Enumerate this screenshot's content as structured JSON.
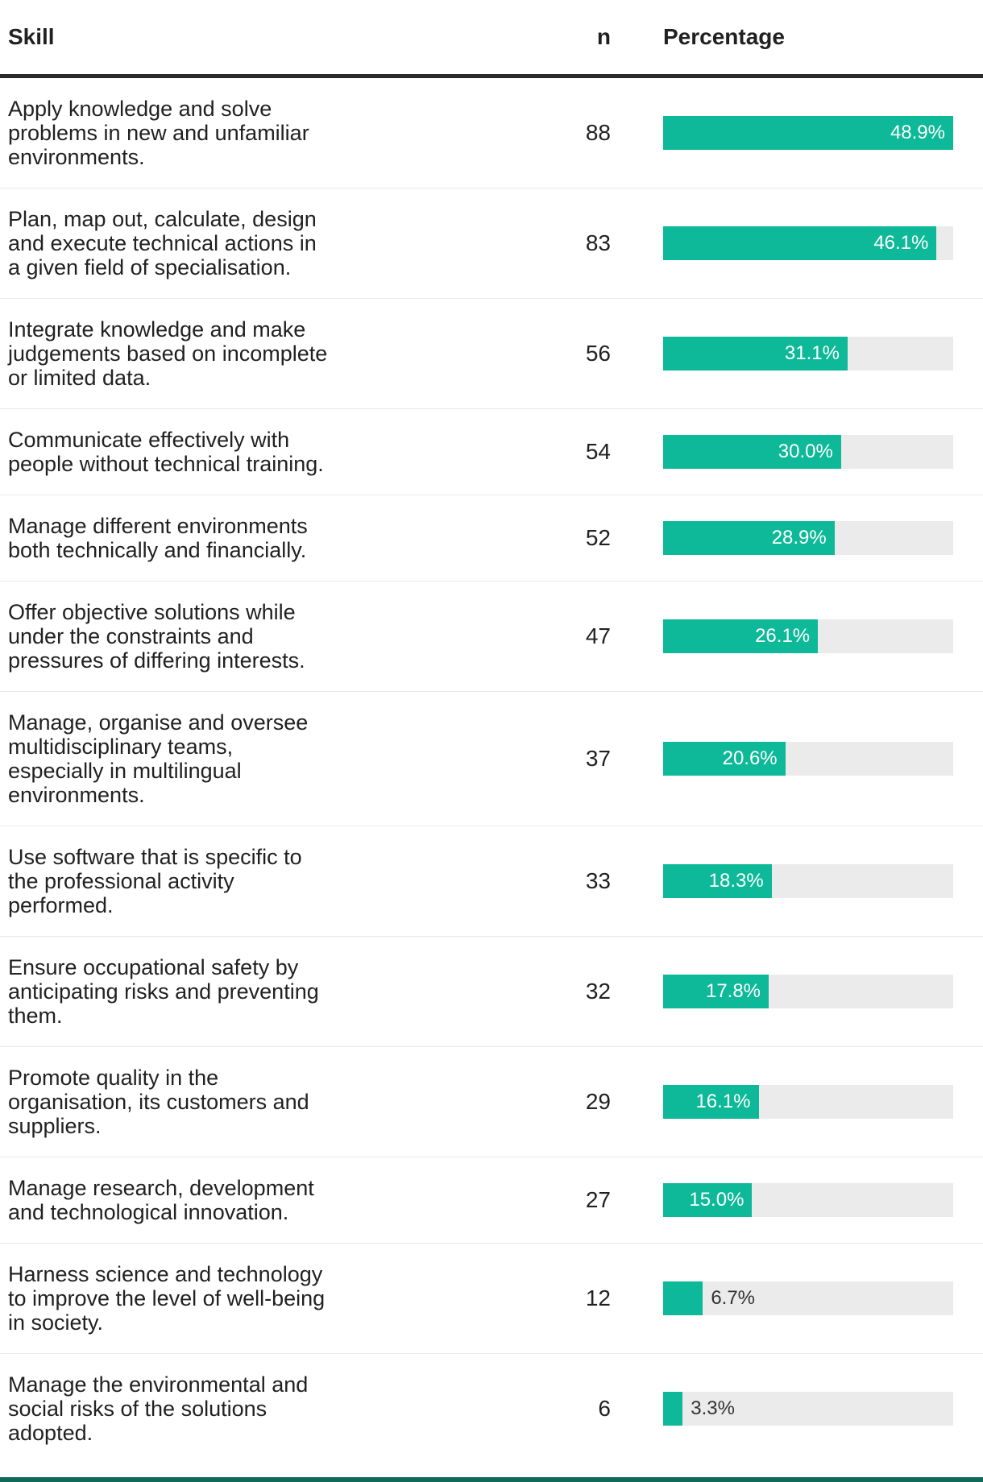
{
  "header": {
    "skill": "Skill",
    "n": "n",
    "percentage": "Percentage"
  },
  "colors": {
    "bar_fill": "#0db998",
    "bar_track": "#ebebeb",
    "header_rule": "#2b2b2b",
    "row_divider": "#e8e8e8",
    "bottom_rule": "#11695a",
    "text": "#212121",
    "bar_label_inside": "#ffffff",
    "bar_label_outside": "#333333"
  },
  "chart_data": {
    "type": "bar",
    "orientation": "horizontal",
    "title": "",
    "xlabel": "",
    "ylabel": "",
    "legend": "none",
    "grid": false,
    "xlim": [
      0,
      48.9
    ],
    "categories": [
      "Apply knowledge and solve\nproblems in new and unfamiliar\nenvironments.",
      "Plan, map out, calculate, design\nand execute technical actions in\na given field of specialisation.",
      "Integrate knowledge and make\njudgements based on incomplete\nor limited data.",
      "Communicate effectively with\npeople without technical training.",
      "Manage different environments\nboth technically and financially.",
      "Offer objective solutions while\nunder the constraints and\npressures of differing interests.",
      "Manage, organise and oversee\nmultidisciplinary teams,\nespecially in multilingual\nenvironments.",
      "Use software that is specific to\nthe professional activity\nperformed.",
      "Ensure occupational safety by\nanticipating risks and preventing\nthem.",
      "Promote quality in the\norganisation, its customers and\nsuppliers.",
      "Manage research, development\nand technological innovation.",
      "Harness science and technology\nto improve the level of well-being\nin society.",
      "Manage the environmental and\nsocial risks of the solutions\nadopted."
    ],
    "series": [
      {
        "name": "n",
        "values": [
          88,
          83,
          56,
          54,
          52,
          47,
          37,
          33,
          32,
          29,
          27,
          12,
          6
        ]
      },
      {
        "name": "Percentage",
        "values": [
          48.9,
          46.1,
          31.1,
          30.0,
          28.9,
          26.1,
          20.6,
          18.3,
          17.8,
          16.1,
          15.0,
          6.7,
          3.3
        ]
      }
    ],
    "bar_labels": [
      "48.9%",
      "46.1%",
      "31.1%",
      "30.0%",
      "28.9%",
      "26.1%",
      "20.6%",
      "18.3%",
      "17.8%",
      "16.1%",
      "15.0%",
      "6.7%",
      "3.3%"
    ]
  }
}
